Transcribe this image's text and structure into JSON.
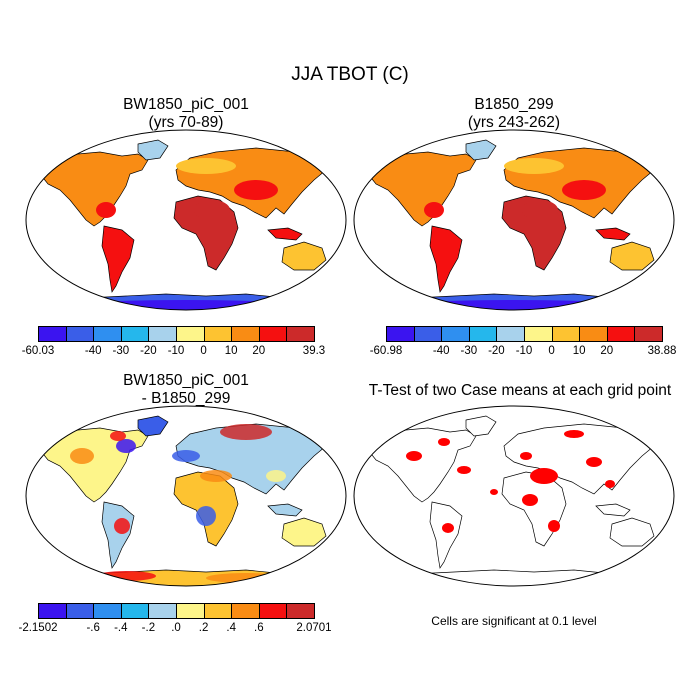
{
  "title": "JJA TBOT (C)",
  "panels": [
    {
      "id": "case1",
      "title1": "BW1850_piC_001",
      "title2": "(yrs 70-89)"
    },
    {
      "id": "case2",
      "title1": "B1850_299",
      "title2": "(yrs 243-262)"
    },
    {
      "id": "diff",
      "title1": "BW1850_piC_001",
      "title2": "- B1850_299"
    },
    {
      "id": "ttest",
      "title1": "T-Test of two Case means at each grid point",
      "title2": ""
    }
  ],
  "colorbars": {
    "temp_colors": [
      "#3b14f0",
      "#3a5ee8",
      "#2f8ff0",
      "#25b7ec",
      "#a8d2ec",
      "#fdf58a",
      "#fdc331",
      "#f98c14",
      "#f51010",
      "#cc2a2a"
    ],
    "diff_colors": [
      "#3b14f0",
      "#3a5ee8",
      "#2f8ff0",
      "#25b7ec",
      "#a8d2ec",
      "#fdf58a",
      "#fdc331",
      "#f98c14",
      "#f51010",
      "#cc2a2a"
    ],
    "case1_labels": [
      "-60.03",
      "-40",
      "-30",
      "-20",
      "-10",
      "0",
      "10",
      "20",
      "39.3"
    ],
    "case2_labels": [
      "-60.98",
      "-40",
      "-30",
      "-20",
      "-10",
      "0",
      "10",
      "20",
      "38.88"
    ],
    "diff_labels": [
      "-2.1502",
      "-.6",
      "-.4",
      "-.2",
      ".0",
      ".2",
      ".4",
      ".6",
      "2.0701"
    ]
  },
  "significance_note": "Cells are significant at 0.1 level",
  "significance_color": "#ff0000"
}
